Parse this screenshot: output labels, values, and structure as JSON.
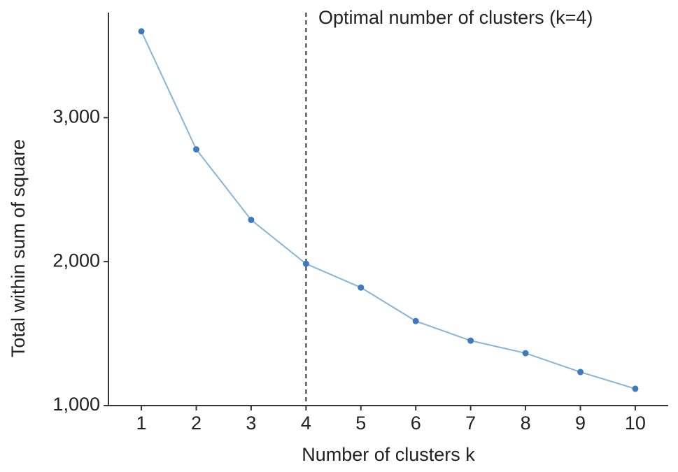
{
  "chart_data": {
    "type": "line",
    "x": [
      1,
      2,
      3,
      4,
      5,
      6,
      7,
      8,
      9,
      10
    ],
    "values": [
      3600,
      2780,
      2290,
      1985,
      1820,
      1587,
      1451,
      1364,
      1233,
      1117
    ],
    "color": "#86b5dc",
    "point_color": "#3d7bbd",
    "xlim": [
      0.4,
      10.6
    ],
    "xticks": [
      1,
      2,
      3,
      4,
      5,
      6,
      7,
      8,
      9,
      10
    ],
    "ylim": [
      1000,
      3730
    ],
    "yticks": [
      {
        "value": 1000,
        "label": "1,000"
      },
      {
        "value": 2000,
        "label": "2,000"
      },
      {
        "value": 3000,
        "label": "3,000"
      }
    ],
    "xlabel": "Number of clusters k",
    "ylabel": "Total within sum of square",
    "vline": 4,
    "annotation": "Optimal number of clusters (k=4)",
    "grid": false
  }
}
